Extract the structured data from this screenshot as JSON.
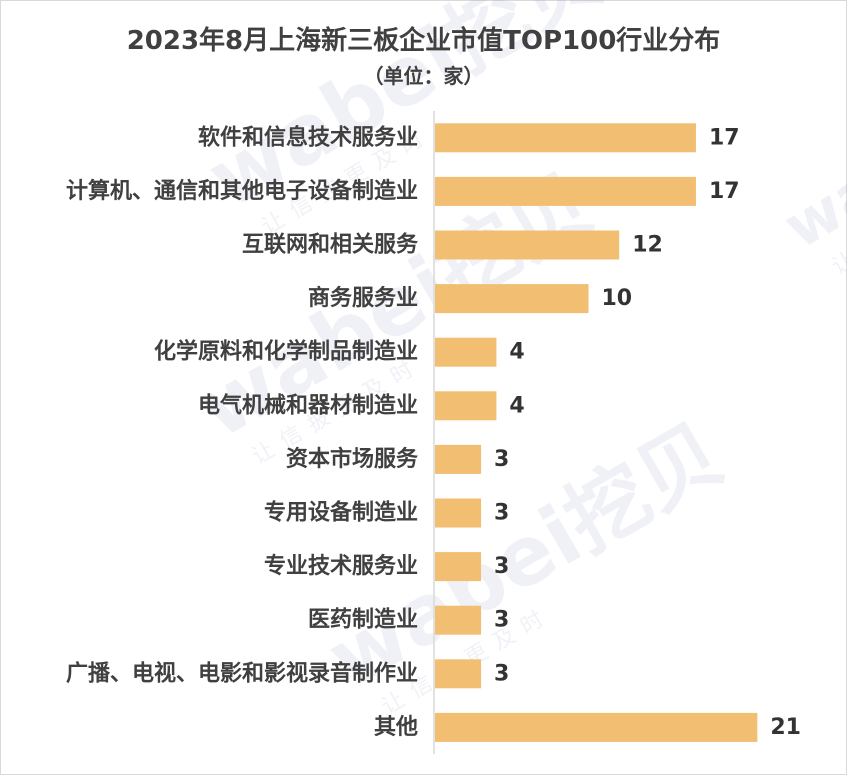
{
  "title": "2023年8月上海新三板企业市值TOP100行业分布",
  "subtitle": "（单位：家）",
  "watermark": {
    "brand": "wabei挖贝",
    "slogan": "让信披更及时"
  },
  "colors": {
    "bar": "#F2BE72",
    "axis": "#d9d9d9",
    "text": "#404040"
  },
  "chart_data": {
    "type": "bar",
    "orientation": "horizontal",
    "title": "2023年8月上海新三板企业市值TOP100行业分布",
    "subtitle": "（单位：家）",
    "categories": [
      "软件和信息技术服务业",
      "计算机、通信和其他电子设备制造业",
      "互联网和相关服务",
      "商务服务业",
      "化学原料和化学制品制造业",
      "电气机械和器材制造业",
      "资本市场服务",
      "专用设备制造业",
      "专业技术服务业",
      "医药制造业",
      "广播、电视、电影和影视录音制作业",
      "其他"
    ],
    "values": [
      17,
      17,
      12,
      10,
      4,
      4,
      3,
      3,
      3,
      3,
      3,
      21
    ],
    "value_labels": [
      "17",
      "17",
      "12",
      "10",
      "4",
      "4",
      "3",
      "3",
      "3",
      "3",
      "3",
      "21"
    ],
    "xlim": [
      0,
      21
    ],
    "grid": false,
    "legend": "none",
    "data_labels": true
  }
}
